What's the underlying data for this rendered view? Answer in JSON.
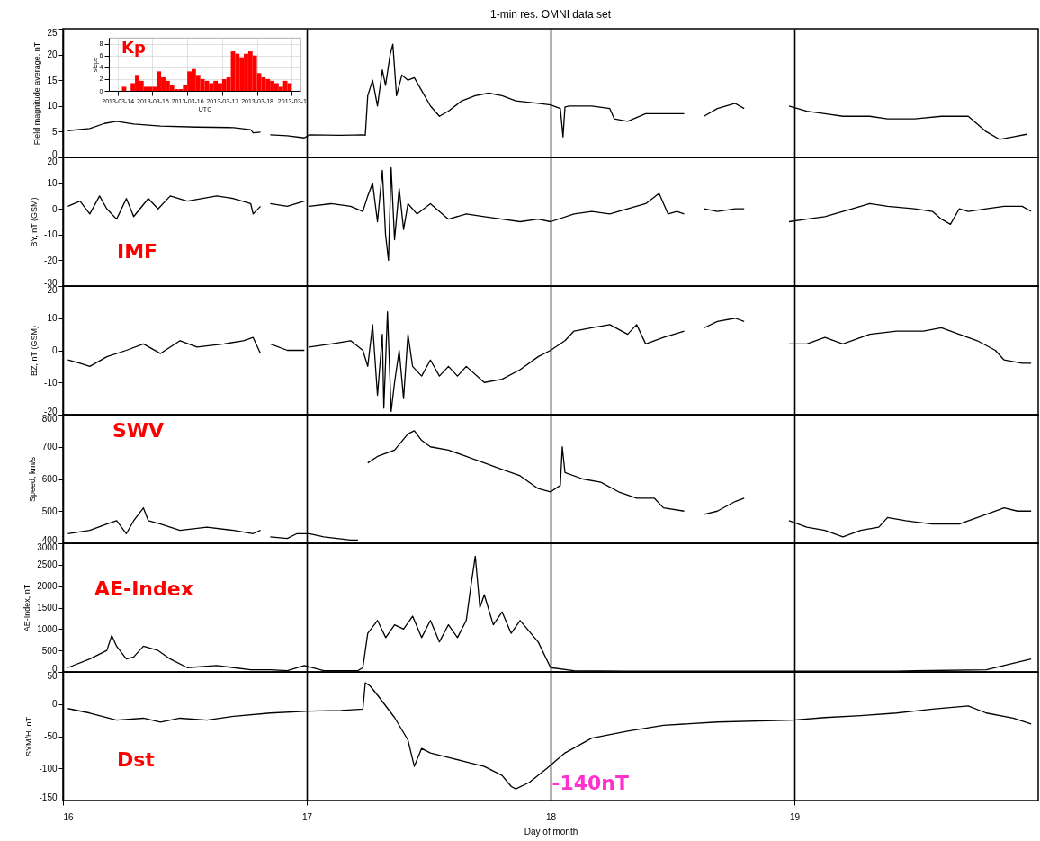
{
  "chart_data": [
    {
      "type": "line",
      "title": "1-min res. OMNI data set",
      "ylabel": "Field magnitude average, nT",
      "xlim": [
        16,
        20
      ],
      "xticks": [
        16,
        17,
        18,
        19
      ],
      "ylim": [
        0,
        25
      ],
      "yticks": [
        0,
        5,
        10,
        15,
        20,
        25
      ],
      "grid": "x",
      "tick_labels": "y",
      "x": [
        16.02,
        16.11,
        16.17,
        16.22,
        16.29,
        16.4,
        16.55,
        16.7,
        16.77,
        16.78,
        16.81,
        16.83,
        16.85,
        16.92,
        16.99,
        17.01,
        17.14,
        17.23,
        17.24,
        17.25,
        17.27,
        17.29,
        17.31,
        17.323,
        17.342,
        17.353,
        17.368,
        17.39,
        17.415,
        17.441,
        17.471,
        17.507,
        17.544,
        17.581,
        17.636,
        17.691,
        17.746,
        17.801,
        17.857,
        17.949,
        18.0,
        18.04,
        18.051,
        18.059,
        18.077,
        18.169,
        18.243,
        18.261,
        18.316,
        18.39,
        18.463,
        18.548,
        18.59,
        18.629,
        18.684,
        18.757,
        18.794,
        18.88,
        18.978,
        19.051,
        19.125,
        19.199,
        19.309,
        19.382,
        19.493,
        19.603,
        19.713,
        19.787,
        19.842,
        19.897,
        19.952
      ],
      "series": [
        {
          "color": "#000000",
          "values": [
            5.2,
            5.6,
            6.6,
            7.0,
            6.5,
            6.1,
            5.9,
            5.8,
            5.4,
            4.8,
            4.9,
            null,
            4.4,
            4.2,
            3.8,
            4.4,
            4.3,
            4.4,
            4.3,
            12,
            15,
            10,
            17,
            14,
            20,
            22,
            12,
            16,
            15,
            15.5,
            13,
            10,
            8,
            9,
            11,
            12,
            12.5,
            12,
            11,
            10.5,
            10.2,
            9.5,
            4,
            9.8,
            10,
            10,
            9.5,
            7.5,
            7,
            8.5,
            8.5,
            8.5,
            null,
            8,
            9.5,
            10.5,
            9.5,
            null,
            10,
            9,
            8.5,
            8,
            8,
            7.5,
            7.5,
            8,
            8,
            5,
            3.5,
            4,
            4.5
          ]
        }
      ]
    },
    {
      "type": "bar",
      "title": "Kp",
      "xlabel": "UTC",
      "ylabel": "steps",
      "xlim": [
        "2013-03-13T18:00",
        "2013-03-19T06:00"
      ],
      "xticks": [
        "2013-03-14",
        "2013-03-15",
        "2013-03-16",
        "2013-03-17",
        "2013-03-18",
        {
          "value": "2013-03-19",
          "label": "2013-03-1"
        }
      ],
      "ylim": [
        0,
        9
      ],
      "yticks": [
        0,
        2,
        4,
        6,
        8
      ],
      "grid": true,
      "color": "#ff0000",
      "x": [
        "2013-03-14T00:00",
        "2013-03-14T03:00",
        "2013-03-14T06:00",
        "2013-03-14T09:00",
        "2013-03-14T12:00",
        "2013-03-14T15:00",
        "2013-03-14T18:00",
        "2013-03-14T21:00",
        "2013-03-15T00:00",
        "2013-03-15T03:00",
        "2013-03-15T06:00",
        "2013-03-15T09:00",
        "2013-03-15T12:00",
        "2013-03-15T15:00",
        "2013-03-15T18:00",
        "2013-03-15T21:00",
        "2013-03-16T00:00",
        "2013-03-16T03:00",
        "2013-03-16T06:00",
        "2013-03-16T09:00",
        "2013-03-16T12:00",
        "2013-03-16T15:00",
        "2013-03-16T18:00",
        "2013-03-16T21:00",
        "2013-03-17T00:00",
        "2013-03-17T03:00",
        "2013-03-17T06:00",
        "2013-03-17T09:00",
        "2013-03-17T12:00",
        "2013-03-17T15:00",
        "2013-03-17T18:00",
        "2013-03-17T21:00",
        "2013-03-18T00:00",
        "2013-03-18T03:00",
        "2013-03-18T06:00",
        "2013-03-18T09:00",
        "2013-03-18T12:00",
        "2013-03-18T15:00",
        "2013-03-18T18:00",
        "2013-03-18T21:00"
      ],
      "values": [
        0,
        0.7,
        0,
        1.3,
        2.7,
        1.7,
        0.7,
        0.7,
        0.7,
        3.3,
        2.3,
        1.7,
        1,
        0.3,
        0.3,
        1,
        3.3,
        3.7,
        2.7,
        2,
        1.7,
        1.3,
        1.7,
        1.3,
        2,
        2.3,
        6.7,
        6.3,
        5.7,
        6.3,
        6.7,
        6,
        3,
        2.3,
        2,
        1.7,
        1.3,
        0.7,
        1.7,
        1.3
      ]
    },
    {
      "type": "line",
      "ylabel": "BY, nT (GSM)",
      "xlim": [
        16,
        20
      ],
      "xticks": [
        16,
        17,
        18,
        19
      ],
      "ylim": [
        -30,
        20
      ],
      "yticks": [
        -30,
        -20,
        -10,
        0,
        10,
        20
      ],
      "grid": "x",
      "tick_labels": "y",
      "annotations": [
        "IMF"
      ],
      "x": [
        16.02,
        16.07,
        16.11,
        16.15,
        16.18,
        16.22,
        16.26,
        16.29,
        16.35,
        16.39,
        16.44,
        16.51,
        16.63,
        16.7,
        16.77,
        16.78,
        16.81,
        16.83,
        16.85,
        16.92,
        16.99,
        17.0,
        17.01,
        17.1,
        17.18,
        17.23,
        17.25,
        17.27,
        17.29,
        17.31,
        17.323,
        17.335,
        17.346,
        17.36,
        17.379,
        17.397,
        17.415,
        17.452,
        17.507,
        17.581,
        17.654,
        17.728,
        17.801,
        17.875,
        17.949,
        18.0,
        18.096,
        18.169,
        18.243,
        18.316,
        18.39,
        18.445,
        18.482,
        18.518,
        18.548,
        18.59,
        18.629,
        18.684,
        18.757,
        18.794,
        18.88,
        18.978,
        19.051,
        19.125,
        19.199,
        19.272,
        19.309,
        19.382,
        19.493,
        19.566,
        19.603,
        19.64,
        19.676,
        19.713,
        19.787,
        19.86,
        19.934,
        19.971
      ],
      "series": [
        {
          "color": "#000000",
          "values": [
            1,
            3,
            -2,
            5,
            0,
            -4,
            4,
            -3,
            4,
            0,
            5,
            3,
            5,
            4,
            2,
            -2,
            1,
            null,
            2,
            1,
            3,
            null,
            1,
            2,
            1,
            -1,
            5,
            10,
            -5,
            15,
            -10,
            -20,
            16,
            -12,
            8,
            -8,
            2,
            -2,
            2,
            -4,
            -2,
            -3,
            -4,
            -5,
            -4,
            -5,
            -2,
            -1,
            -2,
            0,
            2,
            6,
            -2,
            -1,
            -2,
            null,
            0,
            -1,
            0,
            0,
            null,
            -5,
            -4,
            -3,
            -1,
            1,
            2,
            1,
            0,
            -1,
            -4,
            -6,
            0,
            -1,
            0,
            1,
            1,
            -1
          ]
        }
      ]
    },
    {
      "type": "line",
      "ylabel": "BZ, nT (GSM)",
      "xlim": [
        16,
        20
      ],
      "xticks": [
        16,
        17,
        18,
        19
      ],
      "ylim": [
        -20,
        20
      ],
      "yticks": [
        -20,
        -10,
        0,
        10,
        20
      ],
      "grid": "x",
      "tick_labels": "y",
      "x": [
        16.02,
        16.07,
        16.11,
        16.18,
        16.26,
        16.33,
        16.4,
        16.48,
        16.55,
        16.66,
        16.74,
        16.78,
        16.81,
        16.83,
        16.85,
        16.92,
        16.99,
        17.0,
        17.01,
        17.1,
        17.18,
        17.23,
        17.25,
        17.27,
        17.29,
        17.31,
        17.316,
        17.331,
        17.346,
        17.36,
        17.379,
        17.397,
        17.415,
        17.434,
        17.471,
        17.507,
        17.544,
        17.581,
        17.618,
        17.654,
        17.728,
        17.801,
        17.875,
        17.949,
        18.0,
        18.059,
        18.096,
        18.169,
        18.243,
        18.316,
        18.353,
        18.39,
        18.463,
        18.548,
        18.59,
        18.629,
        18.684,
        18.757,
        18.794,
        18.88,
        18.978,
        19.051,
        19.125,
        19.199,
        19.309,
        19.419,
        19.529,
        19.603,
        19.676,
        19.75,
        19.824,
        19.86,
        19.934,
        19.971
      ],
      "series": [
        {
          "color": "#000000",
          "values": [
            -3,
            -4,
            -5,
            -2,
            0,
            2,
            -1,
            3,
            1,
            2,
            3,
            4,
            -1,
            null,
            2,
            0,
            0,
            null,
            1,
            2,
            3,
            0,
            -5,
            8,
            -14,
            5,
            -18,
            12,
            -19,
            -10,
            0,
            -15,
            5,
            -5,
            -8,
            -3,
            -8,
            -5,
            -8,
            -5,
            -10,
            -9,
            -6,
            -2,
            0,
            3,
            6,
            7,
            8,
            5,
            8,
            2,
            4,
            6,
            null,
            7,
            9,
            10,
            9,
            null,
            2,
            2,
            4,
            2,
            5,
            6,
            6,
            7,
            5,
            3,
            0,
            -3,
            -4,
            -4
          ]
        }
      ]
    },
    {
      "type": "line",
      "ylabel": "Speed, km/s",
      "xlim": [
        16,
        20
      ],
      "xticks": [
        16,
        17,
        18,
        19
      ],
      "ylim": [
        400,
        800
      ],
      "yticks": [
        400,
        500,
        600,
        700,
        800
      ],
      "grid": "x",
      "tick_labels": "y",
      "annotations": [
        "SWV"
      ],
      "x": [
        16.02,
        16.11,
        16.18,
        16.22,
        16.26,
        16.29,
        16.33,
        16.35,
        16.4,
        16.48,
        16.59,
        16.7,
        16.78,
        16.81,
        16.83,
        16.85,
        16.92,
        16.96,
        17.01,
        17.07,
        17.18,
        17.21,
        17.23,
        17.25,
        17.29,
        17.36,
        17.415,
        17.441,
        17.471,
        17.507,
        17.581,
        17.654,
        17.728,
        17.801,
        17.875,
        17.949,
        18.0,
        18.04,
        18.048,
        18.059,
        18.132,
        18.206,
        18.279,
        18.353,
        18.426,
        18.463,
        18.548,
        18.59,
        18.629,
        18.684,
        18.757,
        18.794,
        18.88,
        18.978,
        19.051,
        19.125,
        19.199,
        19.272,
        19.346,
        19.382,
        19.456,
        19.566,
        19.676,
        19.787,
        19.86,
        19.915,
        19.971
      ],
      "series": [
        {
          "color": "#000000",
          "values": [
            430,
            440,
            460,
            470,
            430,
            470,
            510,
            470,
            460,
            440,
            450,
            440,
            430,
            440,
            null,
            420,
            415,
            430,
            430,
            420,
            410,
            410,
            null,
            650,
            670,
            690,
            740,
            750,
            720,
            700,
            690,
            670,
            650,
            630,
            610,
            570,
            560,
            580,
            700,
            620,
            600,
            590,
            560,
            540,
            540,
            510,
            500,
            null,
            490,
            500,
            530,
            540,
            null,
            470,
            450,
            440,
            420,
            440,
            450,
            480,
            470,
            460,
            460,
            490,
            510,
            500,
            500
          ]
        }
      ]
    },
    {
      "type": "line",
      "ylabel": "AE-Index, nT",
      "xlim": [
        16,
        20
      ],
      "xticks": [
        16,
        17,
        18,
        19
      ],
      "ylim": [
        0,
        3000
      ],
      "yticks": [
        0,
        500,
        1000,
        1500,
        2000,
        2500,
        3000
      ],
      "grid": "x",
      "tick_labels": "y",
      "annotations": [
        "AE-Index"
      ],
      "x": [
        16.02,
        16.11,
        16.18,
        16.2,
        16.22,
        16.26,
        16.29,
        16.33,
        16.39,
        16.44,
        16.51,
        16.63,
        16.7,
        16.77,
        16.85,
        16.92,
        16.99,
        17.07,
        17.21,
        17.23,
        17.25,
        17.29,
        17.324,
        17.36,
        17.397,
        17.434,
        17.471,
        17.507,
        17.544,
        17.581,
        17.618,
        17.654,
        17.673,
        17.691,
        17.71,
        17.728,
        17.765,
        17.801,
        17.838,
        17.875,
        17.949,
        18.0,
        18.096,
        18.316,
        18.684,
        19.051,
        19.419,
        19.787,
        19.897,
        19.971
      ],
      "series": [
        {
          "color": "#000000",
          "values": [
            100,
            300,
            500,
            850,
            600,
            300,
            350,
            600,
            500,
            300,
            100,
            150,
            100,
            50,
            50,
            30,
            150,
            30,
            30,
            100,
            900,
            1200,
            800,
            1100,
            1000,
            1300,
            800,
            1200,
            700,
            1100,
            800,
            1200,
            2000,
            2700,
            1500,
            1800,
            1100,
            1400,
            900,
            1200,
            700,
            100,
            30,
            20,
            20,
            20,
            20,
            50,
            200,
            300
          ]
        }
      ]
    },
    {
      "type": "line",
      "xlabel": "Day of month",
      "ylabel": "SYM/H, nT",
      "xlim": [
        16,
        20
      ],
      "xticks": [
        16,
        17,
        18,
        19
      ],
      "ylim": [
        -150,
        50
      ],
      "yticks": [
        -150,
        -100,
        -50,
        0,
        50
      ],
      "grid": "x",
      "annotations": [
        "Dst",
        {
          "text": "-140nT",
          "x": 17.857,
          "y": -132
        }
      ],
      "x": [
        16.02,
        16.11,
        16.22,
        16.33,
        16.4,
        16.48,
        16.59,
        16.7,
        16.85,
        17.01,
        17.14,
        17.23,
        17.24,
        17.26,
        17.29,
        17.36,
        17.415,
        17.441,
        17.471,
        17.507,
        17.581,
        17.654,
        17.728,
        17.801,
        17.838,
        17.857,
        17.912,
        17.985,
        18.059,
        18.169,
        18.316,
        18.463,
        18.684,
        18.993,
        19.125,
        19.272,
        19.419,
        19.566,
        19.713,
        19.787,
        19.897,
        19.971
      ],
      "series": [
        {
          "color": "#000000",
          "values": [
            -7,
            -14,
            -25,
            -22,
            -28,
            -22,
            -25,
            -19,
            -14,
            -11,
            -10,
            -8,
            33,
            28,
            14,
            -21,
            -56,
            -97,
            -69,
            -76,
            -83,
            -90,
            -97,
            -111,
            -128,
            -132,
            -122,
            -100,
            -76,
            -53,
            -42,
            -33,
            -28,
            -25,
            -21,
            -18,
            -14,
            -8,
            -3,
            -14,
            -22,
            -31
          ]
        }
      ]
    }
  ]
}
